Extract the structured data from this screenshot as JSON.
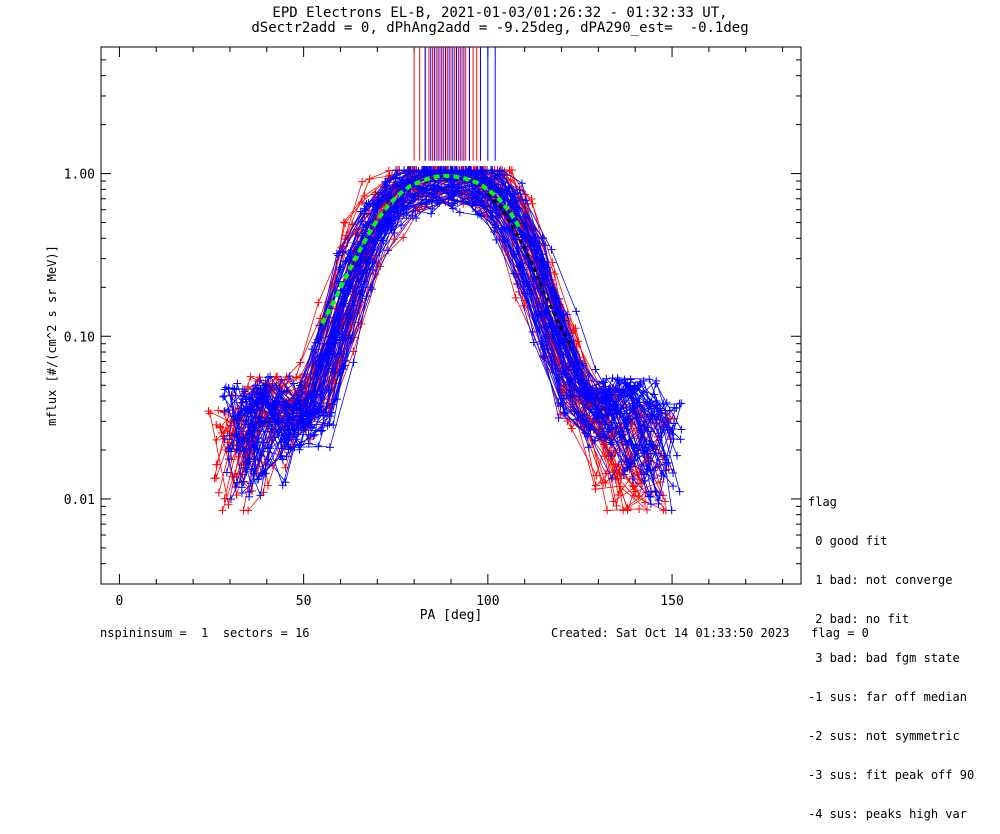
{
  "title_line1": "EPD Electrons EL-B, 2021-01-03/01:26:32 - 01:32:33 UT,",
  "title_line2": "dSectr2add = 0, dPhAng2add = -9.25deg, dPA290_est=  -0.1deg",
  "legend": {
    "title": "flag",
    "items": [
      " 0 good fit",
      " 1 bad: not converge",
      " 2 bad: no fit",
      " 3 bad: bad fgm state",
      "-1 sus: far off median",
      "-2 sus: not symmetric",
      "-3 sus: fit peak off 90",
      "-4 sus: peaks high var"
    ]
  },
  "footer": {
    "left": "nspininsum =  1  sectors = 16",
    "right": "Created: Sat Oct 14 01:33:50 2023   flag = 0"
  },
  "colors": {
    "red": "#ff0000",
    "blue": "#0000ff",
    "green": "#00ff00",
    "black": "#000000"
  },
  "chart_data": {
    "type": "line",
    "xlabel": "PA [deg]",
    "ylabel": "mflux [#/(cm^2 s sr MeV)]",
    "xlim": [
      -5,
      185
    ],
    "ylim": [
      0.003,
      6
    ],
    "yscale": "log",
    "xticks": [
      0,
      50,
      100,
      150
    ],
    "yticks": [
      0.01,
      0.1,
      1.0
    ],
    "ytick_labels": [
      "0.01",
      "0.10",
      "1.00"
    ],
    "grid": false,
    "red_curve_pa": [
      30,
      35,
      40,
      47,
      54,
      60,
      66,
      72,
      78,
      84,
      90,
      96,
      102,
      108,
      114,
      120,
      126,
      132,
      138,
      145
    ],
    "red_curve_flux": [
      0.018,
      0.025,
      0.03,
      0.035,
      0.05,
      0.12,
      0.35,
      0.65,
      0.85,
      0.95,
      0.97,
      0.93,
      0.8,
      0.5,
      0.2,
      0.08,
      0.035,
      0.025,
      0.02,
      0.018
    ],
    "blue_curve_pa": [
      33,
      37,
      42,
      48,
      53,
      58,
      64,
      70,
      76,
      82,
      88,
      94,
      100,
      106,
      112,
      118,
      124,
      130,
      136,
      142,
      148
    ],
    "blue_curve_flux": [
      0.025,
      0.028,
      0.03,
      0.03,
      0.035,
      0.09,
      0.25,
      0.5,
      0.75,
      0.9,
      0.96,
      0.95,
      0.85,
      0.6,
      0.3,
      0.12,
      0.05,
      0.035,
      0.03,
      0.028,
      0.02
    ],
    "green_fit_pa": [
      55,
      58,
      61,
      64,
      67,
      70,
      73,
      76,
      79,
      82,
      85,
      88,
      91,
      94,
      97,
      100,
      103,
      106,
      109
    ],
    "green_fit_flux": [
      0.12,
      0.16,
      0.22,
      0.3,
      0.4,
      0.52,
      0.64,
      0.75,
      0.84,
      0.9,
      0.95,
      0.97,
      0.96,
      0.93,
      0.88,
      0.8,
      0.7,
      0.58,
      0.45
    ],
    "black_fit_pa": [
      100,
      104,
      108,
      112,
      116,
      120,
      123
    ],
    "black_fit_flux": [
      0.75,
      0.6,
      0.42,
      0.28,
      0.17,
      0.11,
      0.085
    ],
    "red_peak_pa": [
      80,
      81.5,
      83,
      84,
      85,
      86,
      87,
      88,
      89,
      90,
      91,
      92,
      93,
      94,
      95,
      96,
      97
    ],
    "blue_peak_pa": [
      83,
      84.5,
      85.5,
      86.5,
      87.5,
      88.5,
      89.5,
      90.5,
      91.5,
      92.5,
      93.5,
      95,
      98,
      100,
      102
    ],
    "peak_bar_range": [
      1.2,
      6
    ]
  }
}
